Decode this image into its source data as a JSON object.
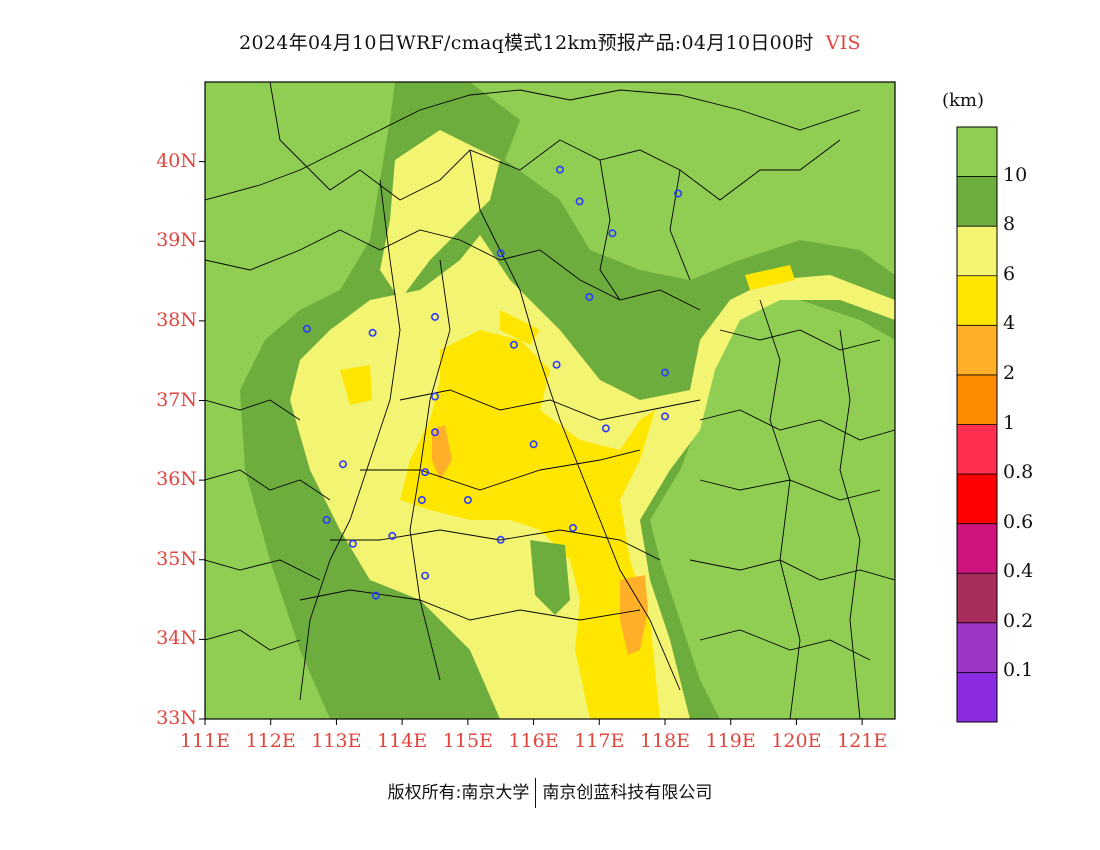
{
  "title": {
    "main": "2024年04月10日WRF/cmaq模式12km预报产品:04月10日00时",
    "variable": "VIS"
  },
  "axes": {
    "lat_labels": [
      "40N",
      "39N",
      "38N",
      "37N",
      "36N",
      "35N",
      "34N",
      "33N"
    ],
    "lon_labels": [
      "111E",
      "112E",
      "113E",
      "114E",
      "115E",
      "116E",
      "117E",
      "118E",
      "119E",
      "120E",
      "121E"
    ],
    "lon_range": [
      111,
      121.5
    ],
    "lat_range": [
      33,
      41
    ]
  },
  "colorbar": {
    "unit": "(km)",
    "levels": [
      "10",
      "8",
      "6",
      "4",
      "2",
      "1",
      "0.8",
      "0.6",
      "0.4",
      "0.2",
      "0.1"
    ],
    "colors": [
      "#8fce52",
      "#6dad3e",
      "#f4f473",
      "#ffe600",
      "#ffb028",
      "#ff8c00",
      "#ff2f50",
      "#ff0000",
      "#cf1480",
      "#a82c5c",
      "#9c35c8",
      "#8a2be2"
    ]
  },
  "footer": {
    "copyright": "版权所有:南京大学",
    "company": "南京创蓝科技有限公司"
  },
  "stations": [
    [
      116.4,
      39.9
    ],
    [
      116.7,
      39.5
    ],
    [
      117.2,
      39.1
    ],
    [
      118.2,
      39.6
    ],
    [
      115.5,
      38.85
    ],
    [
      116.85,
      38.3
    ],
    [
      112.55,
      37.9
    ],
    [
      113.55,
      37.85
    ],
    [
      114.5,
      38.05
    ],
    [
      115.7,
      37.7
    ],
    [
      116.35,
      37.45
    ],
    [
      118.0,
      37.35
    ],
    [
      114.5,
      37.05
    ],
    [
      114.5,
      36.6
    ],
    [
      116.0,
      36.45
    ],
    [
      117.1,
      36.65
    ],
    [
      118.0,
      36.8
    ],
    [
      113.1,
      36.2
    ],
    [
      114.35,
      36.1
    ],
    [
      114.3,
      35.75
    ],
    [
      115.0,
      35.75
    ],
    [
      112.85,
      35.5
    ],
    [
      113.85,
      35.3
    ],
    [
      113.25,
      35.2
    ],
    [
      115.5,
      35.25
    ],
    [
      116.6,
      35.4
    ],
    [
      114.35,
      34.8
    ],
    [
      113.6,
      34.55
    ]
  ]
}
